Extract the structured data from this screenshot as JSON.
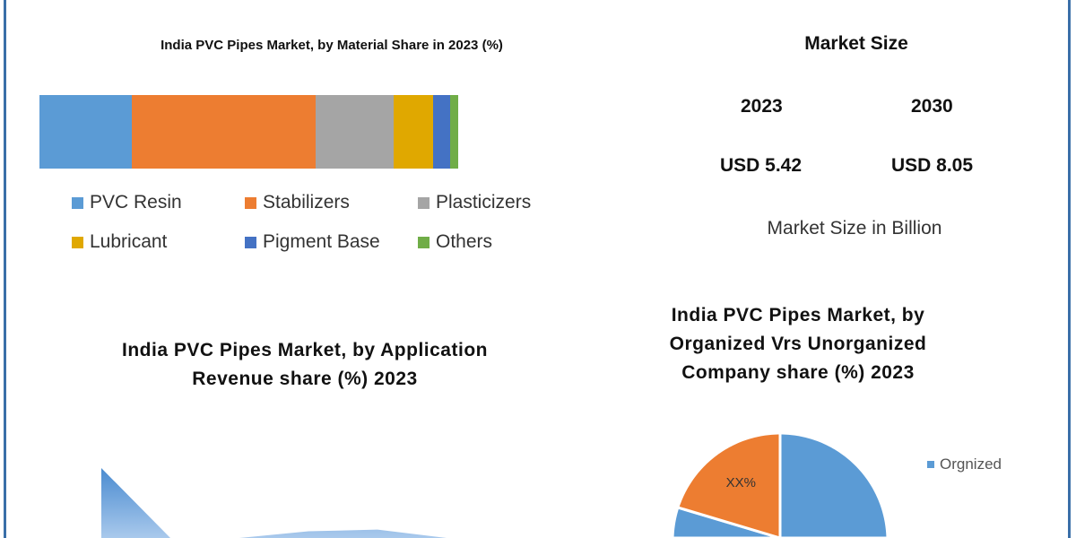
{
  "chart_data": [
    {
      "type": "bar",
      "stacked": true,
      "orientation": "horizontal",
      "title": "India PVC Pipes Market, by Material Share in 2023 (%)",
      "legend_position": "bottom",
      "series": [
        {
          "name": "PVC Resin",
          "values": [
            22
          ],
          "color": "#5b9bd5"
        },
        {
          "name": "Stabilizers",
          "values": [
            44
          ],
          "color": "#ed7d31"
        },
        {
          "name": "Plasticizers",
          "values": [
            18.5
          ],
          "color": "#a5a5a5"
        },
        {
          "name": "Lubricant",
          "values": [
            9.5
          ],
          "color": "#e0a800"
        },
        {
          "name": "Pigment Base",
          "values": [
            4
          ],
          "color": "#4472c4"
        },
        {
          "name": "Others",
          "values": [
            2
          ],
          "color": "#70ad47"
        }
      ]
    },
    {
      "type": "area",
      "title": "India PVC Pipes Market, by Application Revenue share (%) 2023",
      "values": [
        100,
        10,
        15,
        28,
        30,
        10
      ],
      "color": "#5b9bd5"
    },
    {
      "type": "pie",
      "title": "India PVC Pipes Market, by Organized Vrs Unorganized Company share (%) 2023",
      "slices": [
        {
          "name": "Orgnized",
          "value": 80,
          "color": "#5b9bd5"
        },
        {
          "value": 20,
          "label": "XX%",
          "color": "#ed7d31"
        }
      ],
      "legend_position": "right"
    }
  ],
  "market_size": {
    "title": "Market Size",
    "years": [
      "2023",
      "2030"
    ],
    "values": [
      "USD 5.42",
      "USD 8.05"
    ],
    "unit_note": "Market Size in Billion"
  }
}
